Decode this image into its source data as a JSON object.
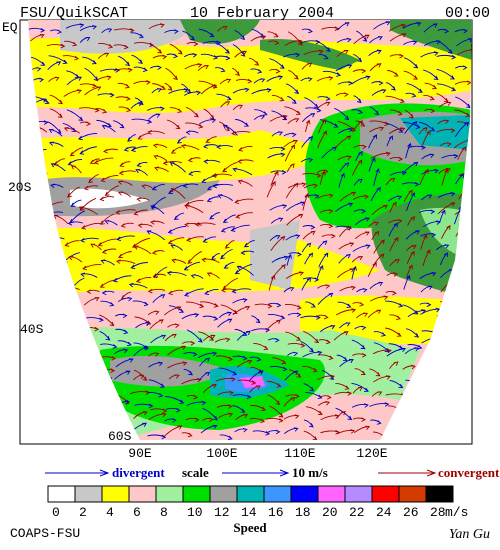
{
  "header": {
    "left": "FSU/QuikSCAT",
    "center": "10 February 2004",
    "right": "00:00"
  },
  "lat_labels": [
    "EQ",
    "20S",
    "40S",
    "60S"
  ],
  "lon_labels": [
    "90E",
    "100E",
    "110E",
    "120E"
  ],
  "scale": {
    "divergent": "divergent",
    "scale": "scale",
    "speed": "10 m/s",
    "convergent": "convergent"
  },
  "colorbar": {
    "title": "Speed",
    "unit": "m/s",
    "ticks": [
      0,
      2,
      4,
      6,
      8,
      10,
      12,
      14,
      16,
      18,
      20,
      22,
      24,
      26,
      28
    ],
    "colors": [
      "#ffffff",
      "#c8c8c8",
      "#ffff00",
      "#ffc8c8",
      "#a0f0a0",
      "#00e000",
      "#a0a0a0",
      "#00b4b4",
      "#3c96ff",
      "#0000ff",
      "#ff64ff",
      "#b48cff",
      "#ff0000",
      "#d23c00",
      "#000000"
    ]
  },
  "footer": {
    "left": "COAPS-FSU",
    "right": "Yan Gu"
  }
}
